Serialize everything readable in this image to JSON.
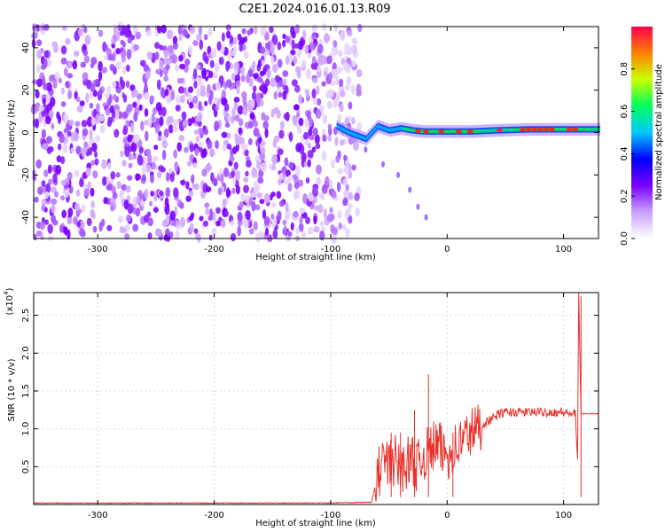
{
  "title": "C2E1.2024.016.01.13.R09",
  "chart_data": [
    {
      "type": "heatmap",
      "xlabel": "Height of straight line (km)",
      "ylabel": "Frequency (Hz)",
      "xlim": [
        -355,
        130
      ],
      "ylim": [
        -50,
        50
      ],
      "xticks": [
        -300,
        -200,
        -100,
        0,
        100
      ],
      "yticks": [
        -40,
        -20,
        0,
        20,
        40
      ],
      "noise_region_x": [
        -355,
        -85
      ],
      "signal_trace": [
        {
          "x": -95,
          "f": 3
        },
        {
          "x": -85,
          "f": 0
        },
        {
          "x": -70,
          "f": -3
        },
        {
          "x": -60,
          "f": 3
        },
        {
          "x": -50,
          "f": 1
        },
        {
          "x": -40,
          "f": 2
        },
        {
          "x": -30,
          "f": 1
        },
        {
          "x": -20,
          "f": 0.5
        },
        {
          "x": 0,
          "f": 0.5
        },
        {
          "x": 20,
          "f": 0.5
        },
        {
          "x": 40,
          "f": 1
        },
        {
          "x": 70,
          "f": 1.5
        },
        {
          "x": 100,
          "f": 1.5
        },
        {
          "x": 130,
          "f": 1.5
        }
      ],
      "secondary_trace": [
        {
          "x": -70,
          "f": -8
        },
        {
          "x": -55,
          "f": -15
        },
        {
          "x": -42,
          "f": -20
        },
        {
          "x": -32,
          "f": -27
        },
        {
          "x": -25,
          "f": -35
        },
        {
          "x": -18,
          "f": -40
        }
      ],
      "colorbar": {
        "label": "Normalized spectral amplitude",
        "range": [
          0,
          1
        ],
        "ticks": [
          0.0,
          0.2,
          0.4,
          0.6,
          0.8
        ],
        "tick_labels": [
          "0.0",
          "0.2",
          "0.4",
          "0.6",
          "0.8"
        ],
        "colors": [
          "#ffffff",
          "#c8a0ff",
          "#7a00ff",
          "#0000ff",
          "#00c8ff",
          "#00ff60",
          "#c8ff00",
          "#ff8000",
          "#ff0050"
        ]
      }
    },
    {
      "type": "line",
      "xlabel": "Height of straight line (km)",
      "ylabel": "SNR (10 * v/v)",
      "exponent_label": "(x10",
      "exponent_power": "4",
      "xlim": [
        -355,
        130
      ],
      "ylim": [
        0,
        2.8
      ],
      "xticks": [
        -300,
        -200,
        -100,
        0,
        100
      ],
      "yticks": [
        0.5,
        1.0,
        1.5,
        2.0,
        2.5
      ],
      "ytick_labels": [
        "0.5",
        "1.0",
        "1.5",
        "2.0",
        "2.5"
      ],
      "series": [
        {
          "color": "#e8302a",
          "x": [
            -355,
            -300,
            -200,
            -100,
            -65,
            -60,
            -55,
            -50,
            -45,
            -40,
            -35,
            -30,
            -25,
            -20,
            -15,
            -10,
            -5,
            0,
            5,
            10,
            15,
            20,
            25,
            30,
            35,
            40,
            45,
            50,
            60,
            70,
            80,
            90,
            100,
            105,
            110,
            112,
            113,
            115,
            120,
            130
          ],
          "y": [
            0.02,
            0.02,
            0.02,
            0.02,
            0.03,
            0.35,
            0.6,
            0.5,
            0.6,
            0.45,
            0.55,
            0.6,
            0.5,
            0.65,
            0.7,
            0.8,
            0.72,
            0.65,
            0.72,
            0.8,
            0.88,
            0.95,
            1.0,
            1.05,
            1.1,
            1.15,
            1.2,
            1.22,
            1.22,
            1.22,
            1.22,
            1.22,
            1.22,
            1.2,
            1.2,
            0.6,
            2.8,
            1.2,
            1.2,
            1.2
          ],
          "spikes": [
            {
              "x": -48,
              "y": 0.95
            },
            {
              "x": -40,
              "y": 0.95
            },
            {
              "x": -28,
              "y": 1.25
            },
            {
              "x": -16,
              "y": 1.72
            },
            {
              "x": 5,
              "y": 0.95
            },
            {
              "x": 115,
              "y": 2.75
            }
          ]
        }
      ]
    }
  ]
}
